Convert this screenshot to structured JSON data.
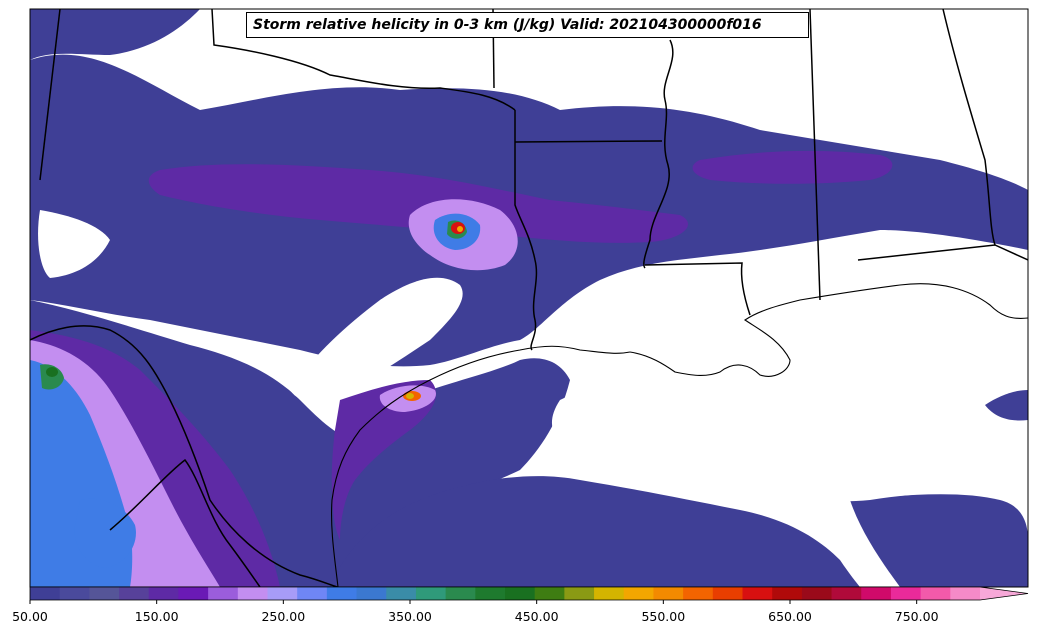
{
  "title": "Storm relative helicity in 0-3 km (J/kg) Valid: 202104300000f016",
  "colorbar": {
    "ticks": [
      {
        "label": "50.00",
        "value": 50
      },
      {
        "label": "150.00",
        "value": 150
      },
      {
        "label": "250.00",
        "value": 250
      },
      {
        "label": "350.00",
        "value": 350
      },
      {
        "label": "450.00",
        "value": 450
      },
      {
        "label": "550.00",
        "value": 550
      },
      {
        "label": "650.00",
        "value": 650
      },
      {
        "label": "750.00",
        "value": 750
      }
    ],
    "min": 50,
    "max": 800,
    "step": 25,
    "extend": "max",
    "colors": [
      "#3f3f96",
      "#4a4a9c",
      "#555598",
      "#57419a",
      "#5e2aa5",
      "#6a1ab5",
      "#9b5ddc",
      "#c38ef0",
      "#a79cf8",
      "#6f86f5",
      "#3f7ce6",
      "#3b78d0",
      "#3a8ca8",
      "#2f9a7a",
      "#2a8a4e",
      "#1e7a2e",
      "#197020",
      "#3e7d12",
      "#8a9a14",
      "#d4b400",
      "#f2a600",
      "#f28a00",
      "#f26400",
      "#e83e00",
      "#d81010",
      "#b00a0a",
      "#9a0a1a",
      "#b00a3a",
      "#d00a6a",
      "#ea2a9a",
      "#f25aaa",
      "#f58ac8"
    ]
  },
  "map_colors": {
    "ocean_land_background": "#ffffff",
    "low_helicity": "#3f3f96",
    "moderate_helicity": "#5e2aa5",
    "high_helicity": "#c38ef0",
    "peak_helicity": "#d81010",
    "borders": "#000000"
  }
}
